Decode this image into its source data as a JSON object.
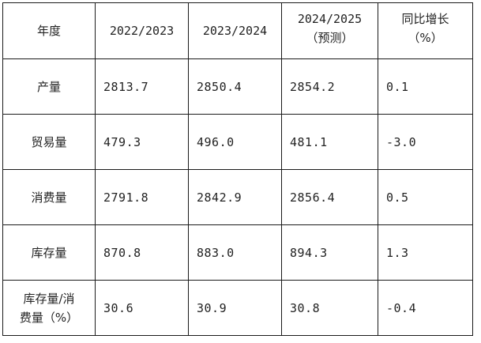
{
  "header": {
    "year": "年度",
    "col1": "2022/2023",
    "col2": "2023/2024",
    "col3_line1": "2024/2025",
    "col3_line2": "（预测）",
    "col4_line1": "同比增长",
    "col4_line2": "（%）"
  },
  "rows": [
    {
      "label": "产量",
      "v1": "2813.7",
      "v2": "2850.4",
      "v3": "2854.2",
      "v4": "0.1"
    },
    {
      "label": "贸易量",
      "v1": "479.3",
      "v2": "496.0",
      "v3": "481.1",
      "v4": "-3.0"
    },
    {
      "label": "消费量",
      "v1": "2791.8",
      "v2": "2842.9",
      "v3": "2856.4",
      "v4": "0.5"
    },
    {
      "label": "库存量",
      "v1": "870.8",
      "v2": "883.0",
      "v3": "894.3",
      "v4": "1.3"
    }
  ],
  "last_row": {
    "label_line1": "库存量/消",
    "label_line2": "费量（%）",
    "v1": "30.6",
    "v2": "30.9",
    "v3": "30.8",
    "v4": "-0.4"
  }
}
